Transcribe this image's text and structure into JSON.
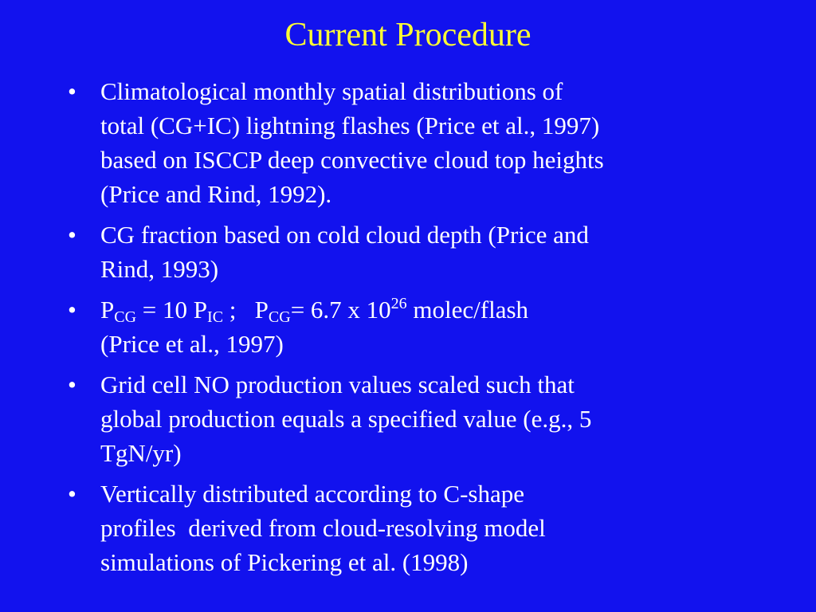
{
  "slide": {
    "title": "Current Procedure",
    "bullet_symbol": "•",
    "bullets": [
      {
        "lines": [
          "Climatological monthly spatial distributions of",
          "total (CG+IC) lightning flashes (Price et al., 1997)",
          "based on ISCCP deep convective cloud top heights",
          "(Price and Rind, 1992)."
        ]
      },
      {
        "lines": [
          "CG fraction based on cold cloud depth (Price and",
          "Rind, 1993)"
        ]
      },
      {
        "formula": {
          "p1": "P",
          "p1_sub": "CG",
          "eq1": " = 10 P",
          "p2_sub": "IC",
          "sep": " ;   P",
          "p3_sub": "CG",
          "eq2": "= 6.7 x 10",
          "exp": "26",
          "unit": " molec/flash"
        },
        "lines": [
          "(Price et al., 1997)"
        ]
      },
      {
        "lines": [
          "Grid cell NO production values scaled such that",
          "global production equals a specified value (e.g., 5",
          "TgN/yr)"
        ]
      },
      {
        "lines": [
          "Vertically distributed according to C-shape",
          "profiles  derived from cloud-resolving model",
          "simulations of Pickering et al. (1998)"
        ]
      }
    ]
  },
  "colors": {
    "background": "#1212ee",
    "title": "#ffff33",
    "text": "#ffffff"
  }
}
